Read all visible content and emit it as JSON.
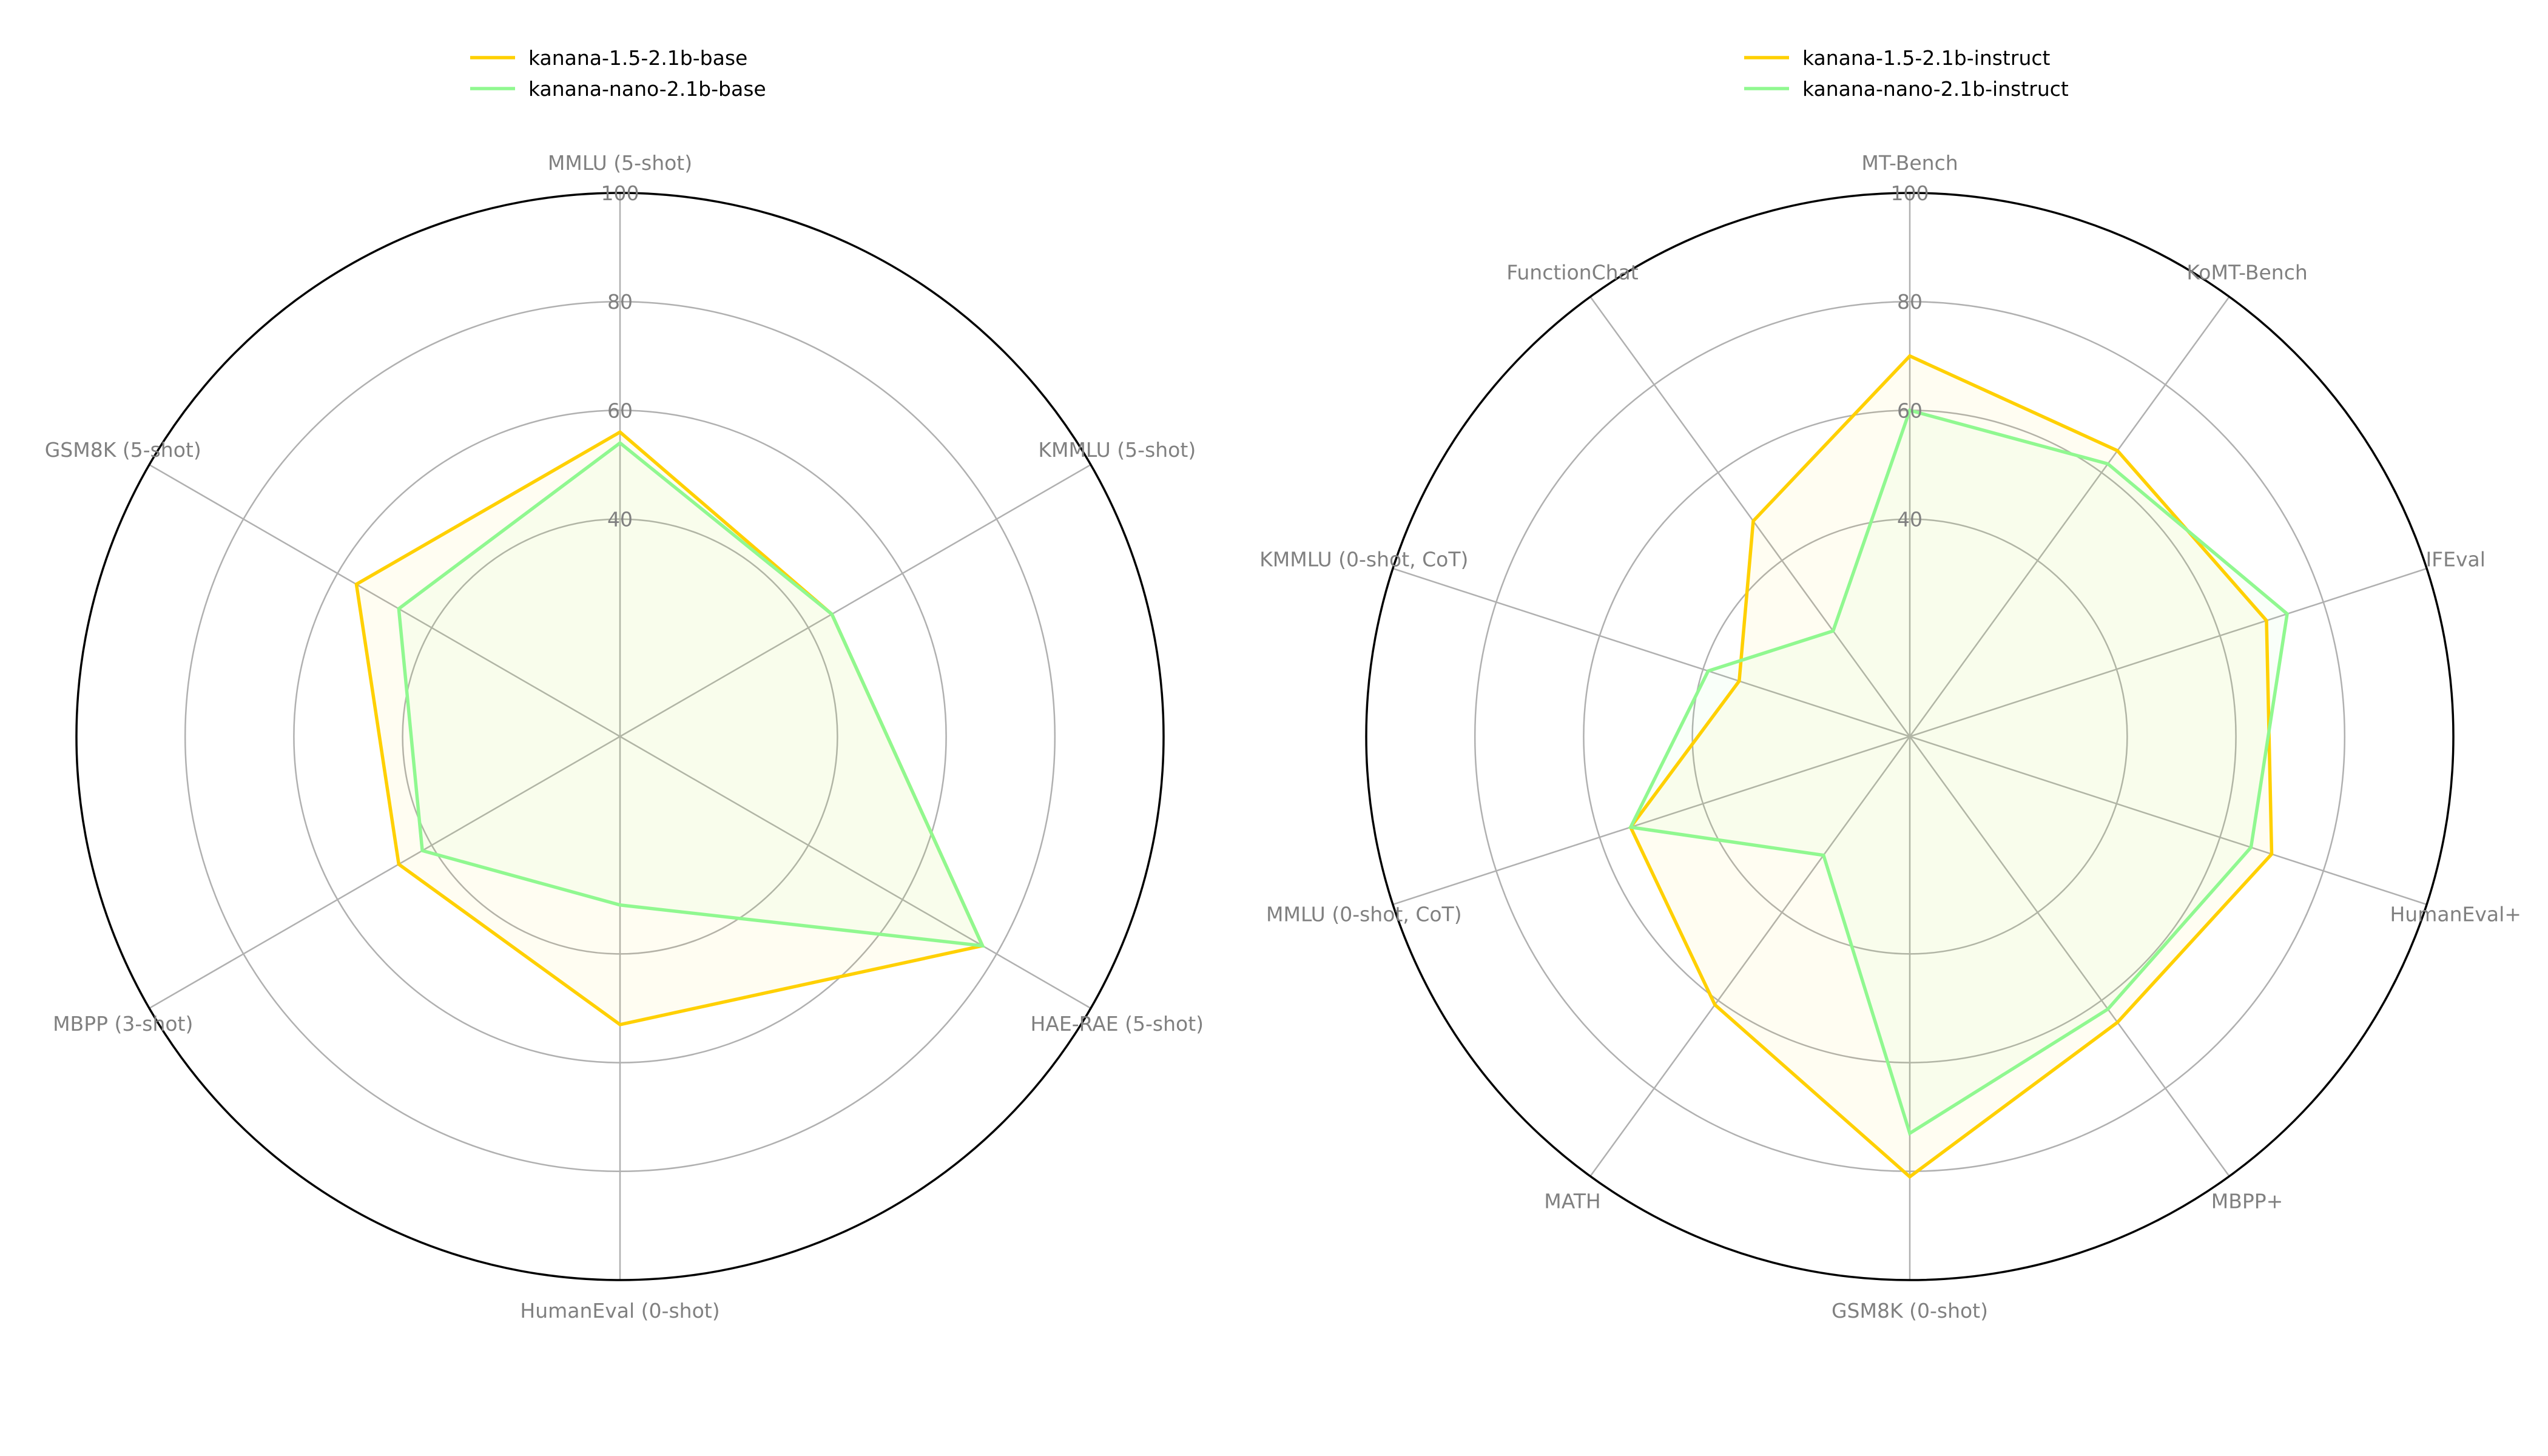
{
  "chart_data": [
    {
      "type": "radar",
      "categories": [
        "MMLU (5-shot)",
        "KMMLU (5-shot)",
        "HAE-RAE (5-shot)",
        "HumanEval (0-shot)",
        "MBPP (3-shot)",
        "GSM8K (5-shot)"
      ],
      "rlim": [
        0,
        100
      ],
      "rticks": [
        40,
        60,
        80,
        100
      ],
      "legend": "top-left",
      "series": [
        {
          "name": "kanana-1.5-2.1b-base",
          "color": "#FFD000",
          "values": [
            56,
            45,
            77,
            53,
            47,
            56
          ]
        },
        {
          "name": "kanana-nano-2.1b-base",
          "color": "#90F890",
          "values": [
            54,
            45,
            77,
            31,
            42,
            47
          ]
        }
      ]
    },
    {
      "type": "radar",
      "categories": [
        "MT-Bench",
        "KoMT-Bench",
        "IFEval",
        "HumanEval+",
        "MBPP+",
        "GSM8K (0-shot)",
        "MATH",
        "MMLU (0-shot, CoT)",
        "KMMLU (0-shot, CoT)",
        "FunctionChat"
      ],
      "rlim": [
        0,
        100
      ],
      "rticks": [
        40,
        60,
        80,
        100
      ],
      "legend": "top-left",
      "series": [
        {
          "name": "kanana-1.5-2.1b-instruct",
          "color": "#FFD000",
          "values": [
            70,
            65,
            69,
            70,
            65,
            81,
            61,
            54,
            33,
            49
          ]
        },
        {
          "name": "kanana-nano-2.1b-instruct",
          "color": "#90F890",
          "values": [
            60,
            62,
            73,
            66,
            62,
            73,
            27,
            54,
            39,
            24
          ]
        }
      ]
    }
  ]
}
